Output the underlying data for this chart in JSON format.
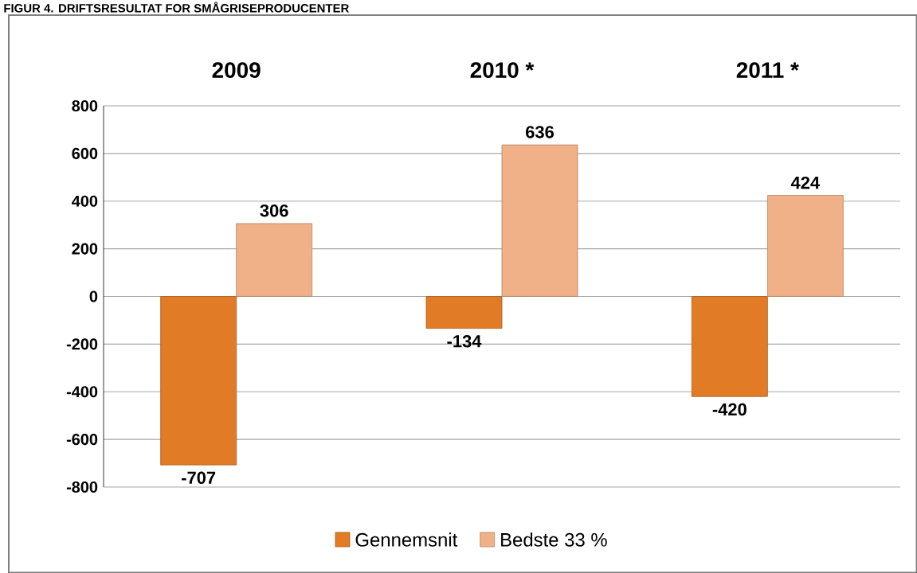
{
  "chart_data": {
    "type": "bar",
    "title": "FIGUR 4. DRIFTSRESULTAT FOR SMÅGRISEPRODUCENTER",
    "categories": [
      "2009",
      "2010 *",
      "2011 *"
    ],
    "series": [
      {
        "name": "Gennemsnit",
        "color": "#e27b25",
        "values": [
          -707,
          -134,
          -420
        ]
      },
      {
        "name": "Bedste 33 %",
        "color": "#f0b088",
        "values": [
          306,
          636,
          424
        ]
      }
    ],
    "ylim": [
      -800,
      800
    ],
    "yticks": [
      -800,
      -600,
      -400,
      -200,
      0,
      200,
      400,
      600,
      800
    ],
    "grid": "y",
    "legend": "bottom",
    "data_labels": true
  }
}
